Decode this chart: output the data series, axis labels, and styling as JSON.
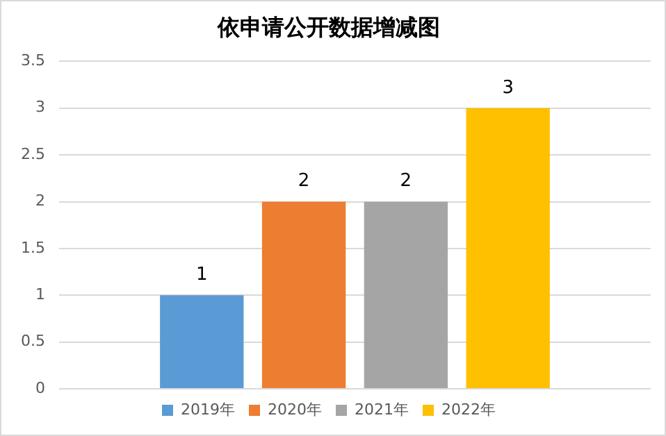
{
  "chart_data": {
    "type": "bar",
    "title": "依申请公开数据增减图",
    "categories": [
      null
    ],
    "series": [
      {
        "name": "2019年",
        "color": "#5b9bd5",
        "values": [
          1
        ]
      },
      {
        "name": "2020年",
        "color": "#ed7d31",
        "values": [
          2
        ]
      },
      {
        "name": "2021年",
        "color": "#a5a5a5",
        "values": [
          2
        ]
      },
      {
        "name": "2022年",
        "color": "#ffc000",
        "values": [
          3
        ]
      }
    ],
    "ylim": [
      0,
      3.5
    ],
    "yticks": [
      0,
      0.5,
      1,
      1.5,
      2,
      2.5,
      3,
      3.5
    ],
    "grid": "y",
    "legend": "bottom",
    "data_labels": true
  }
}
